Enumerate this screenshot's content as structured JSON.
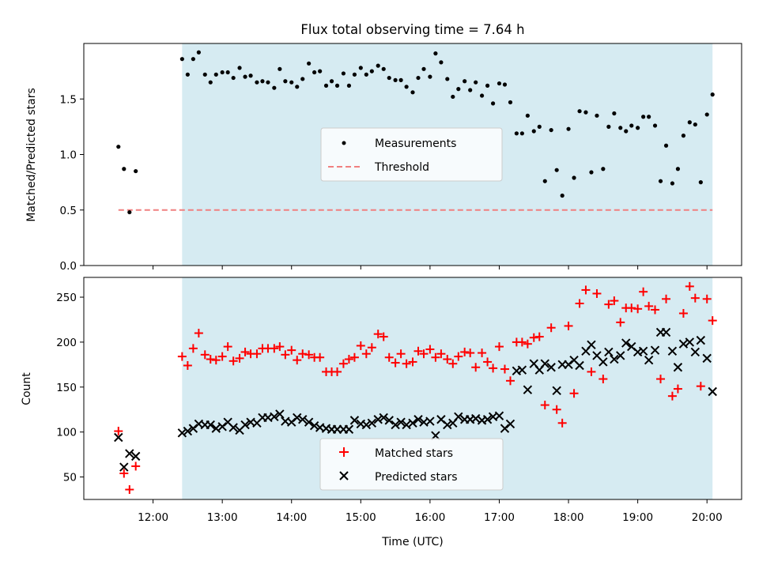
{
  "title": "Flux total observing time = 7.64 h",
  "xlabel": "Time (UTC)",
  "colors": {
    "shade": "#add8e6",
    "threshold": "#f08080",
    "matched": "#ff0000",
    "predicted": "#000000",
    "measurement": "#000000"
  },
  "xticks": [
    {
      "t": 12,
      "label": "12:00"
    },
    {
      "t": 13,
      "label": "13:00"
    },
    {
      "t": 14,
      "label": "14:00"
    },
    {
      "t": 15,
      "label": "15:00"
    },
    {
      "t": 16,
      "label": "16:00"
    },
    {
      "t": 17,
      "label": "17:00"
    },
    {
      "t": 18,
      "label": "18:00"
    },
    {
      "t": 19,
      "label": "19:00"
    },
    {
      "t": 20,
      "label": "20:00"
    }
  ],
  "chart_data": [
    {
      "type": "scatter",
      "ylabel": "Matched/Predicted stars",
      "xlim": [
        11.0,
        20.5
      ],
      "ylim": [
        0,
        2.0
      ],
      "shaded_span": [
        12.42,
        20.08
      ],
      "yticks": [
        {
          "v": 0.0,
          "label": "0.0"
        },
        {
          "v": 0.5,
          "label": "0.5"
        },
        {
          "v": 1.0,
          "label": "1.0"
        },
        {
          "v": 1.5,
          "label": "1.5"
        }
      ],
      "legend": {
        "position": "center",
        "entries": [
          "Measurements",
          "Threshold"
        ]
      },
      "threshold": {
        "name": "Threshold",
        "y": 0.5,
        "x_range": [
          11.5,
          20.08
        ]
      },
      "series": [
        {
          "name": "Measurements",
          "x": [
            11.5,
            11.58,
            11.66,
            11.75,
            12.42,
            12.5,
            12.58,
            12.66,
            12.75,
            12.83,
            12.91,
            13.0,
            13.08,
            13.16,
            13.25,
            13.33,
            13.41,
            13.5,
            13.58,
            13.66,
            13.75,
            13.83,
            13.91,
            14.0,
            14.08,
            14.16,
            14.25,
            14.33,
            14.41,
            14.5,
            14.58,
            14.66,
            14.75,
            14.83,
            14.91,
            15.0,
            15.08,
            15.16,
            15.25,
            15.33,
            15.41,
            15.5,
            15.58,
            15.66,
            15.75,
            15.83,
            15.91,
            16.0,
            16.08,
            16.16,
            16.25,
            16.33,
            16.41,
            16.5,
            16.58,
            16.66,
            16.75,
            16.83,
            16.91,
            17.0,
            17.08,
            17.16,
            17.25,
            17.33,
            17.41,
            17.5,
            17.58,
            17.66,
            17.75,
            17.83,
            17.91,
            18.0,
            18.08,
            18.16,
            18.25,
            18.33,
            18.41,
            18.5,
            18.58,
            18.66,
            18.75,
            18.83,
            18.91,
            19.0,
            19.08,
            19.16,
            19.25,
            19.33,
            19.41,
            19.5,
            19.58,
            19.66,
            19.75,
            19.83,
            19.91,
            20.0,
            20.08
          ],
          "y": [
            1.07,
            0.87,
            0.48,
            0.85,
            1.86,
            1.72,
            1.86,
            1.92,
            1.72,
            1.65,
            1.72,
            1.74,
            1.74,
            1.69,
            1.78,
            1.7,
            1.71,
            1.65,
            1.66,
            1.65,
            1.6,
            1.77,
            1.66,
            1.65,
            1.61,
            1.68,
            1.82,
            1.74,
            1.75,
            1.62,
            1.66,
            1.62,
            1.73,
            1.62,
            1.72,
            1.78,
            1.72,
            1.75,
            1.8,
            1.77,
            1.69,
            1.67,
            1.67,
            1.61,
            1.56,
            1.69,
            1.77,
            1.7,
            1.91,
            1.83,
            1.68,
            1.52,
            1.59,
            1.66,
            1.58,
            1.65,
            1.53,
            1.62,
            1.46,
            1.64,
            1.63,
            1.47,
            1.19,
            1.19,
            1.35,
            1.21,
            1.25,
            0.76,
            1.22,
            0.86,
            0.63,
            1.23,
            0.79,
            1.39,
            1.38,
            0.84,
            1.35,
            0.87,
            1.25,
            1.37,
            1.24,
            1.21,
            1.26,
            1.24,
            1.34,
            1.34,
            1.26,
            0.76,
            1.08,
            0.74,
            0.87,
            1.17,
            1.29,
            1.27,
            0.75,
            1.36,
            1.54
          ]
        }
      ]
    },
    {
      "type": "scatter",
      "ylabel": "Count",
      "xlim": [
        11.0,
        20.5
      ],
      "ylim": [
        25,
        272
      ],
      "shaded_span": [
        12.42,
        20.08
      ],
      "yticks": [
        {
          "v": 50,
          "label": "50"
        },
        {
          "v": 100,
          "label": "100"
        },
        {
          "v": 150,
          "label": "150"
        },
        {
          "v": 200,
          "label": "200"
        },
        {
          "v": 250,
          "label": "250"
        }
      ],
      "legend": {
        "position": "lower center",
        "entries": [
          "Matched stars",
          "Predicted stars"
        ]
      },
      "series": [
        {
          "name": "Matched stars",
          "marker": "plus",
          "x": [
            11.5,
            11.58,
            11.66,
            11.75,
            12.42,
            12.5,
            12.58,
            12.66,
            12.75,
            12.83,
            12.91,
            13.0,
            13.08,
            13.16,
            13.25,
            13.33,
            13.41,
            13.5,
            13.58,
            13.66,
            13.75,
            13.83,
            13.91,
            14.0,
            14.08,
            14.16,
            14.25,
            14.33,
            14.41,
            14.5,
            14.58,
            14.66,
            14.75,
            14.83,
            14.91,
            15.0,
            15.08,
            15.16,
            15.25,
            15.33,
            15.41,
            15.5,
            15.58,
            15.66,
            15.75,
            15.83,
            15.91,
            16.0,
            16.08,
            16.16,
            16.25,
            16.33,
            16.41,
            16.5,
            16.58,
            16.66,
            16.75,
            16.83,
            16.91,
            17.0,
            17.08,
            17.16,
            17.25,
            17.33,
            17.41,
            17.5,
            17.58,
            17.66,
            17.75,
            17.83,
            17.91,
            18.0,
            18.08,
            18.16,
            18.25,
            18.33,
            18.41,
            18.5,
            18.58,
            18.66,
            18.75,
            18.83,
            18.91,
            19.0,
            19.08,
            19.16,
            19.25,
            19.33,
            19.41,
            19.5,
            19.58,
            19.66,
            19.75,
            19.83,
            19.91,
            20.0,
            20.08
          ],
          "y": [
            101,
            54,
            36,
            62,
            184,
            174,
            193,
            210,
            186,
            181,
            180,
            184,
            195,
            179,
            182,
            189,
            187,
            187,
            193,
            193,
            193,
            195,
            186,
            191,
            180,
            187,
            186,
            183,
            183,
            167,
            167,
            167,
            176,
            181,
            183,
            196,
            187,
            194,
            209,
            206,
            183,
            177,
            187,
            176,
            178,
            190,
            187,
            192,
            183,
            187,
            181,
            176,
            184,
            189,
            188,
            172,
            188,
            178,
            171,
            195,
            170,
            157,
            200,
            200,
            198,
            205,
            206,
            130,
            216,
            125,
            110,
            218,
            143,
            243,
            258,
            167,
            254,
            159,
            242,
            246,
            222,
            238,
            238,
            237,
            256,
            240,
            236,
            159,
            248,
            140,
            148,
            232,
            262,
            249,
            151,
            248,
            224
          ]
        },
        {
          "name": "Predicted stars",
          "marker": "x",
          "x": [
            11.5,
            11.58,
            11.66,
            11.75,
            12.42,
            12.5,
            12.58,
            12.66,
            12.75,
            12.83,
            12.91,
            13.0,
            13.08,
            13.16,
            13.25,
            13.33,
            13.41,
            13.5,
            13.58,
            13.66,
            13.75,
            13.83,
            13.91,
            14.0,
            14.08,
            14.16,
            14.25,
            14.33,
            14.41,
            14.5,
            14.58,
            14.66,
            14.75,
            14.83,
            14.91,
            15.0,
            15.08,
            15.16,
            15.25,
            15.33,
            15.41,
            15.5,
            15.58,
            15.66,
            15.75,
            15.83,
            15.91,
            16.0,
            16.08,
            16.16,
            16.25,
            16.33,
            16.41,
            16.5,
            16.58,
            16.66,
            16.75,
            16.83,
            16.91,
            17.0,
            17.08,
            17.16,
            17.25,
            17.33,
            17.41,
            17.5,
            17.58,
            17.66,
            17.75,
            17.83,
            17.91,
            18.0,
            18.08,
            18.16,
            18.25,
            18.33,
            18.41,
            18.5,
            18.58,
            18.66,
            18.75,
            18.83,
            18.91,
            19.0,
            19.08,
            19.16,
            19.25,
            19.33,
            19.41,
            19.5,
            19.58,
            19.66,
            19.75,
            19.83,
            19.91,
            20.0,
            20.08
          ],
          "y": [
            94,
            61,
            76,
            73,
            99,
            101,
            104,
            109,
            108,
            108,
            104,
            106,
            111,
            105,
            102,
            108,
            111,
            110,
            116,
            116,
            117,
            120,
            112,
            111,
            116,
            114,
            111,
            107,
            105,
            104,
            103,
            103,
            103,
            103,
            113,
            109,
            108,
            110,
            114,
            116,
            113,
            108,
            111,
            108,
            110,
            114,
            111,
            112,
            96,
            114,
            108,
            110,
            117,
            114,
            114,
            115,
            113,
            114,
            117,
            118,
            104,
            109,
            168,
            169,
            147,
            176,
            169,
            176,
            172,
            146,
            175,
            175,
            180,
            174,
            190,
            197,
            185,
            178,
            189,
            181,
            185,
            199,
            195,
            189,
            190,
            180,
            191,
            211,
            211,
            190,
            172,
            198,
            200,
            189,
            202,
            182,
            145
          ]
        }
      ]
    }
  ]
}
